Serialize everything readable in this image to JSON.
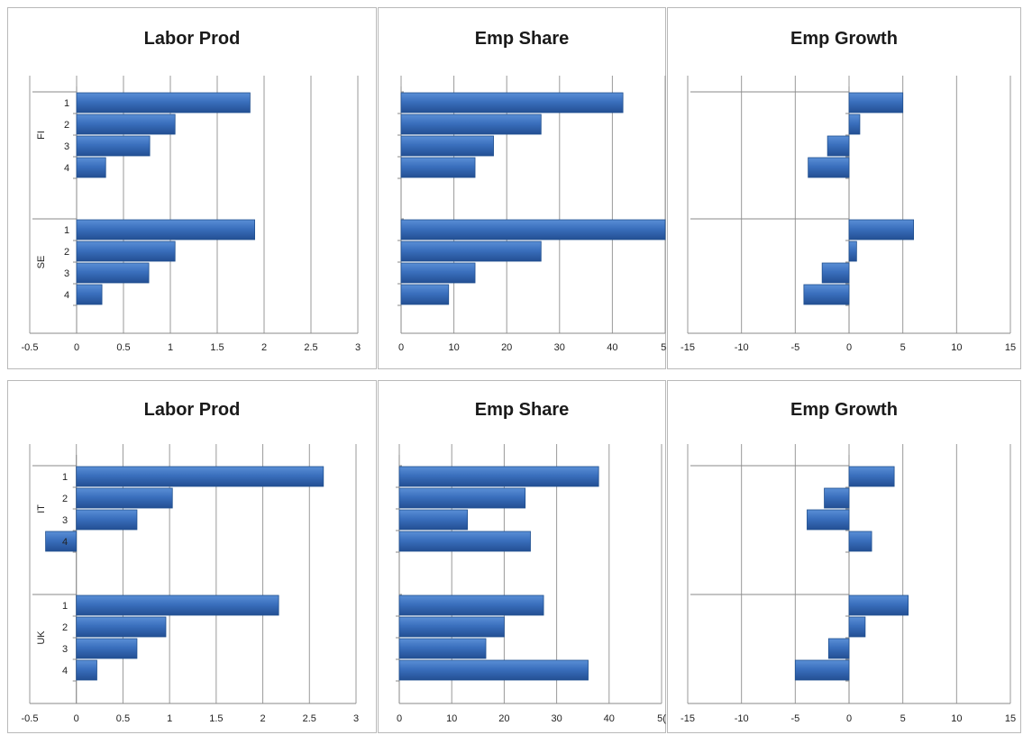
{
  "chart_data": [
    {
      "type": "bar",
      "orientation": "horizontal",
      "title": "Labor Prod",
      "groups": [
        "FI",
        "SE"
      ],
      "categories": [
        "1",
        "2",
        "3",
        "4"
      ],
      "series": [
        {
          "values": [
            [
              1.85,
              1.05,
              0.78,
              0.31
            ],
            [
              1.9,
              1.05,
              0.77,
              0.27
            ]
          ]
        }
      ],
      "xlim": [
        -0.5,
        3
      ],
      "xticks": [
        "-0.5",
        "0",
        "0.5",
        "1",
        "1.5",
        "2",
        "2.5",
        "3"
      ],
      "xlabel": "",
      "ylabel": "",
      "grid": true,
      "legend": "none",
      "color": "#3a6fbd"
    },
    {
      "type": "bar",
      "orientation": "horizontal",
      "title": "Emp Share",
      "groups": [
        "FI",
        "SE"
      ],
      "categories": [
        "1",
        "2",
        "3",
        "4"
      ],
      "series": [
        {
          "values": [
            [
              42,
              26.5,
              17.5,
              14
            ],
            [
              50,
              26.5,
              14,
              9
            ]
          ]
        }
      ],
      "xlim": [
        0,
        50
      ],
      "xticks": [
        "0",
        "10",
        "20",
        "30",
        "40",
        "5("
      ],
      "xlabel": "",
      "ylabel": "",
      "grid": true,
      "legend": "none",
      "color": "#3a6fbd"
    },
    {
      "type": "bar",
      "orientation": "horizontal",
      "title": "Emp Growth",
      "groups": [
        "FI",
        "SE"
      ],
      "categories": [
        "1",
        "2",
        "3",
        "4"
      ],
      "series": [
        {
          "values": [
            [
              5,
              1,
              -2,
              -3.8
            ],
            [
              6,
              0.7,
              -2.5,
              -4.2
            ]
          ]
        }
      ],
      "xlim": [
        -15,
        15
      ],
      "xticks": [
        "-15",
        "-10",
        "-5",
        "0",
        "5",
        "10",
        "15"
      ],
      "xlabel": "",
      "ylabel": "",
      "grid": true,
      "legend": "none",
      "color": "#3a6fbd"
    },
    {
      "type": "bar",
      "orientation": "horizontal",
      "title": "Labor Prod",
      "groups": [
        "IT",
        "UK"
      ],
      "categories": [
        "1",
        "2",
        "3",
        "4"
      ],
      "series": [
        {
          "values": [
            [
              2.65,
              1.03,
              0.65,
              -0.33
            ],
            [
              2.17,
              0.96,
              0.65,
              0.22
            ]
          ]
        }
      ],
      "xlim": [
        -0.5,
        3
      ],
      "xticks": [
        "-0.5",
        "0",
        "0.5",
        "1",
        "1.5",
        "2",
        "2.5",
        "3"
      ],
      "xlabel": "",
      "ylabel": "",
      "grid": true,
      "legend": "none",
      "color": "#3a6fbd"
    },
    {
      "type": "bar",
      "orientation": "horizontal",
      "title": "Emp Share",
      "groups": [
        "IT",
        "UK"
      ],
      "categories": [
        "1",
        "2",
        "3",
        "4"
      ],
      "series": [
        {
          "values": [
            [
              38,
              24,
              13,
              25
            ],
            [
              27.5,
              20,
              16.5,
              36
            ]
          ]
        }
      ],
      "xlim": [
        0,
        50
      ],
      "xticks": [
        "0",
        "10",
        "20",
        "30",
        "40",
        "5("
      ],
      "xlabel": "",
      "ylabel": "",
      "grid": true,
      "legend": "none",
      "color": "#3a6fbd"
    },
    {
      "type": "bar",
      "orientation": "horizontal",
      "title": "Emp Growth",
      "groups": [
        "IT",
        "UK"
      ],
      "categories": [
        "1",
        "2",
        "3",
        "4"
      ],
      "series": [
        {
          "values": [
            [
              4.2,
              -2.3,
              -3.9,
              2.1
            ],
            [
              5.5,
              1.5,
              -1.9,
              -5
            ]
          ]
        }
      ],
      "xlim": [
        -15,
        15
      ],
      "xticks": [
        "-15",
        "-10",
        "-5",
        "0",
        "5",
        "10",
        "15"
      ],
      "xlabel": "",
      "ylabel": "",
      "grid": true,
      "legend": "none",
      "color": "#3a6fbd"
    }
  ]
}
